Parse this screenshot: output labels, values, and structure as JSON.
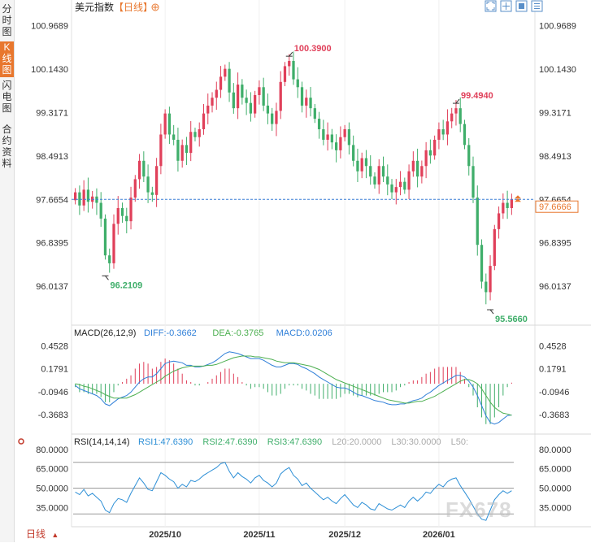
{
  "sidebar": {
    "tabs": [
      {
        "label": "分时图",
        "active": false
      },
      {
        "label": "K线图",
        "active": true
      },
      {
        "label": "闪电图",
        "active": false
      },
      {
        "label": "合约资料",
        "active": false
      }
    ]
  },
  "header": {
    "symbol": "美元指数",
    "period_tag": "【日线】",
    "period_icon": "plus-circle-icon"
  },
  "toolbar": {
    "icons": [
      "fullscreen-icon",
      "crosshair-icon",
      "indicator-icon",
      "menu-icon"
    ]
  },
  "bottom_bar": {
    "period_label": "日线",
    "dropdown_icon": "triangle-up-icon"
  },
  "watermark": {
    "text": "FX678"
  },
  "colors": {
    "up": "#e0405a",
    "down": "#3fae6a",
    "last_price_line": "#3a7fd5",
    "last_price_label": "#e8772e",
    "diff": "#2f7fd8",
    "dea": "#4caf50",
    "rsi": "#2d8fd6"
  },
  "chart_data": [
    {
      "type": "candlestick",
      "title": "美元指数【日线】",
      "y_ticks": [
        "100.9689",
        "100.1430",
        "99.3171",
        "98.4913",
        "97.6654",
        "96.8395",
        "96.0137"
      ],
      "ylim": [
        95.35,
        101.15
      ],
      "x_ticks": [
        {
          "label": "2025/10",
          "index": 21
        },
        {
          "label": "2025/11",
          "index": 43
        },
        {
          "label": "2025/12",
          "index": 63
        },
        {
          "label": "2026/01",
          "index": 85
        }
      ],
      "annotations": [
        {
          "label": "100.3900",
          "index": 50,
          "value": 100.39,
          "color": "#e0405a"
        },
        {
          "label": "99.4940",
          "index": 89,
          "value": 99.494,
          "color": "#e0405a"
        },
        {
          "label": "96.2109",
          "index": 7,
          "value": 96.2109,
          "color": "#3fae6a"
        },
        {
          "label": "95.5660",
          "index": 97,
          "value": 95.566,
          "color": "#3fae6a"
        }
      ],
      "last_price": 97.6666,
      "last_price_label": "97.6666",
      "close": [
        97.8,
        97.55,
        97.85,
        97.62,
        97.72,
        97.6,
        97.3,
        96.6,
        96.45,
        97.2,
        97.5,
        97.35,
        97.25,
        97.7,
        98.05,
        98.4,
        98.1,
        97.8,
        97.75,
        98.3,
        98.9,
        99.3,
        98.9,
        98.8,
        98.4,
        98.7,
        98.55,
        98.95,
        98.85,
        99.0,
        99.3,
        99.45,
        99.6,
        99.75,
        100.0,
        100.15,
        99.7,
        99.4,
        99.85,
        99.6,
        99.5,
        99.3,
        99.65,
        99.8,
        99.45,
        99.3,
        99.1,
        99.35,
        99.9,
        100.2,
        100.3,
        99.95,
        99.8,
        99.45,
        99.6,
        99.4,
        99.2,
        99.0,
        98.8,
        98.9,
        98.75,
        98.6,
        98.85,
        99.0,
        98.7,
        98.4,
        98.2,
        98.45,
        98.3,
        98.1,
        97.95,
        98.3,
        98.1,
        97.95,
        97.8,
        97.9,
        98.0,
        97.85,
        98.2,
        98.4,
        98.1,
        98.3,
        98.6,
        98.5,
        98.8,
        99.0,
        98.9,
        99.15,
        99.3,
        99.4,
        99.1,
        98.7,
        98.3,
        97.7,
        96.8,
        96.1,
        95.9,
        96.4,
        97.1,
        97.4,
        97.6,
        97.5,
        97.67
      ],
      "open": [
        97.65,
        97.8,
        97.55,
        97.85,
        97.62,
        97.72,
        97.6,
        97.3,
        96.6,
        96.45,
        97.2,
        97.5,
        97.35,
        97.25,
        97.7,
        98.05,
        98.4,
        98.1,
        97.8,
        97.75,
        98.3,
        98.9,
        99.3,
        98.9,
        98.8,
        98.4,
        98.7,
        98.55,
        98.95,
        98.85,
        99.0,
        99.3,
        99.45,
        99.6,
        99.75,
        100.0,
        100.15,
        99.7,
        99.4,
        99.85,
        99.6,
        99.5,
        99.3,
        99.65,
        99.8,
        99.45,
        99.3,
        99.1,
        99.35,
        99.9,
        100.2,
        100.3,
        99.95,
        99.8,
        99.45,
        99.6,
        99.4,
        99.2,
        99.0,
        98.8,
        98.9,
        98.75,
        98.6,
        98.85,
        99.0,
        98.7,
        98.4,
        98.2,
        98.45,
        98.3,
        98.1,
        97.95,
        98.3,
        98.1,
        97.95,
        97.8,
        97.9,
        98.0,
        97.85,
        98.2,
        98.4,
        98.1,
        98.3,
        98.6,
        98.5,
        98.8,
        99.0,
        98.9,
        99.15,
        99.3,
        99.4,
        99.1,
        98.7,
        98.3,
        97.7,
        96.8,
        96.1,
        95.9,
        96.4,
        97.1,
        97.4,
        97.6,
        97.5
      ]
    },
    {
      "type": "bar",
      "title": "MACD(26,12,9)",
      "legend": [
        {
          "name": "DIFF",
          "value_label": "DIFF:-0.3662",
          "color": "#2f7fd8"
        },
        {
          "name": "DEA",
          "value_label": "DEA:-0.3765",
          "color": "#4caf50"
        },
        {
          "name": "MACD",
          "value_label": "MACD:0.0206",
          "color": "#2f7fd8"
        }
      ],
      "y_ticks": [
        "0.4528",
        "0.1791",
        "-0.0946",
        "-0.3683"
      ],
      "ylim": [
        -0.56,
        0.62
      ],
      "diff": [
        -0.02,
        -0.06,
        -0.08,
        -0.1,
        -0.12,
        -0.14,
        -0.18,
        -0.24,
        -0.26,
        -0.22,
        -0.18,
        -0.16,
        -0.14,
        -0.1,
        -0.04,
        0.02,
        0.06,
        0.08,
        0.08,
        0.12,
        0.18,
        0.24,
        0.26,
        0.27,
        0.26,
        0.25,
        0.22,
        0.22,
        0.2,
        0.2,
        0.21,
        0.23,
        0.25,
        0.28,
        0.32,
        0.36,
        0.38,
        0.37,
        0.36,
        0.34,
        0.32,
        0.3,
        0.3,
        0.3,
        0.28,
        0.25,
        0.22,
        0.2,
        0.2,
        0.22,
        0.24,
        0.24,
        0.23,
        0.2,
        0.18,
        0.15,
        0.12,
        0.08,
        0.05,
        0.02,
        -0.01,
        -0.04,
        -0.05,
        -0.05,
        -0.07,
        -0.1,
        -0.13,
        -0.14,
        -0.16,
        -0.18,
        -0.2,
        -0.21,
        -0.22,
        -0.24,
        -0.25,
        -0.25,
        -0.24,
        -0.24,
        -0.22,
        -0.2,
        -0.19,
        -0.17,
        -0.13,
        -0.1,
        -0.06,
        -0.02,
        0.01,
        0.04,
        0.07,
        0.1,
        0.1,
        0.08,
        0.03,
        -0.04,
        -0.14,
        -0.26,
        -0.38,
        -0.46,
        -0.48,
        -0.46,
        -0.42,
        -0.38,
        -0.37
      ],
      "dea": [
        0.0,
        -0.01,
        -0.03,
        -0.04,
        -0.06,
        -0.08,
        -0.1,
        -0.13,
        -0.15,
        -0.17,
        -0.17,
        -0.17,
        -0.17,
        -0.15,
        -0.13,
        -0.1,
        -0.07,
        -0.04,
        -0.01,
        0.02,
        0.05,
        0.09,
        0.12,
        0.15,
        0.17,
        0.19,
        0.2,
        0.21,
        0.21,
        0.21,
        0.21,
        0.22,
        0.22,
        0.23,
        0.25,
        0.27,
        0.29,
        0.31,
        0.32,
        0.33,
        0.33,
        0.33,
        0.32,
        0.32,
        0.31,
        0.3,
        0.29,
        0.27,
        0.26,
        0.25,
        0.25,
        0.25,
        0.24,
        0.23,
        0.22,
        0.21,
        0.19,
        0.17,
        0.14,
        0.11,
        0.08,
        0.05,
        0.03,
        0.01,
        -0.01,
        -0.03,
        -0.05,
        -0.07,
        -0.09,
        -0.11,
        -0.13,
        -0.15,
        -0.17,
        -0.19,
        -0.2,
        -0.21,
        -0.22,
        -0.23,
        -0.23,
        -0.22,
        -0.21,
        -0.21,
        -0.19,
        -0.17,
        -0.15,
        -0.12,
        -0.09,
        -0.06,
        -0.03,
        0.0,
        0.03,
        0.05,
        0.05,
        0.03,
        0.0,
        -0.06,
        -0.14,
        -0.22,
        -0.28,
        -0.32,
        -0.35,
        -0.36,
        -0.3765
      ]
    },
    {
      "type": "line",
      "title": "RSI(14,14,14)",
      "legend": [
        {
          "name": "RSI1",
          "value_label": "RSI1:47.6390",
          "color": "#2d8fd6"
        },
        {
          "name": "RSI2",
          "value_label": "RSI2:47.6390",
          "color": "#3fae6a"
        },
        {
          "name": "RSI3",
          "value_label": "RSI3:47.6390",
          "color": "#3fae6a"
        },
        {
          "name": "L20",
          "value_label": "L20:20.0000",
          "color": "#aaaaaa"
        },
        {
          "name": "L30",
          "value_label": "L30:30.0000",
          "color": "#aaaaaa"
        },
        {
          "name": "L50",
          "value_label": "L50:",
          "color": "#aaaaaa"
        }
      ],
      "y_ticks": [
        "80.0000",
        "65.0000",
        "50.0000",
        "35.0000"
      ],
      "ylim": [
        22,
        85
      ],
      "reference_lines": [
        70,
        50,
        30
      ],
      "rsi": [
        47,
        45,
        49,
        44,
        46,
        43,
        40,
        33,
        31,
        38,
        42,
        41,
        39,
        46,
        52,
        58,
        54,
        49,
        48,
        55,
        62,
        60,
        57,
        55,
        50,
        53,
        51,
        56,
        55,
        57,
        60,
        62,
        64,
        66,
        69,
        70,
        63,
        58,
        62,
        59,
        57,
        54,
        58,
        60,
        56,
        54,
        51,
        54,
        61,
        64,
        66,
        60,
        57,
        52,
        54,
        50,
        47,
        44,
        41,
        43,
        40,
        38,
        42,
        45,
        41,
        37,
        35,
        39,
        37,
        34,
        33,
        38,
        36,
        34,
        33,
        35,
        37,
        35,
        40,
        43,
        40,
        43,
        47,
        46,
        50,
        53,
        51,
        55,
        57,
        58,
        52,
        47,
        42,
        36,
        30,
        26,
        25,
        33,
        41,
        45,
        48,
        46,
        48
      ]
    }
  ]
}
